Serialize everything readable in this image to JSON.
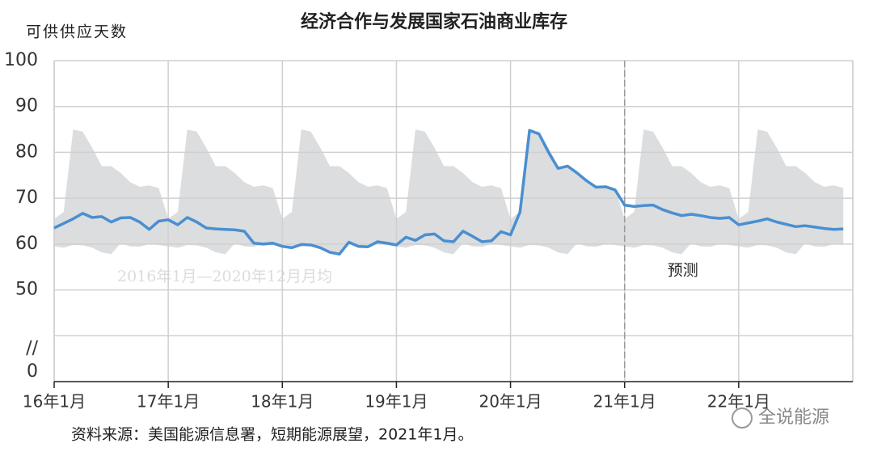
{
  "chart_data": {
    "type": "line",
    "title": "经济合作与发展国家石油商业库存",
    "y_label": "可供供应天数",
    "source": "资料来源：美国能源信息署，短期能源展望，2021年1月。",
    "watermark": "全说能源",
    "categories": [
      "16年1月",
      null,
      null,
      null,
      null,
      null,
      null,
      null,
      null,
      null,
      null,
      null,
      "17年1月",
      null,
      null,
      null,
      null,
      null,
      null,
      null,
      null,
      null,
      null,
      null,
      "18年1月",
      null,
      null,
      null,
      null,
      null,
      null,
      null,
      null,
      null,
      null,
      null,
      "19年1月",
      null,
      null,
      null,
      null,
      null,
      null,
      null,
      null,
      null,
      null,
      null,
      "20年1月",
      null,
      null,
      null,
      null,
      null,
      null,
      null,
      null,
      null,
      null,
      null,
      "21年1月",
      null,
      null,
      null,
      null,
      null,
      null,
      null,
      null,
      null,
      null,
      null,
      "22年1月",
      null,
      null,
      null,
      null,
      null,
      null,
      null,
      null,
      null,
      null,
      null
    ],
    "series": [
      {
        "color": "#4a8fd0",
        "values": [
          63.5,
          64.5,
          65.5,
          66.7,
          65.8,
          66,
          64.8,
          65.7,
          65.8,
          64.8,
          63.2,
          65,
          65.3,
          64.2,
          65.8,
          64.8,
          63.5,
          63.3,
          63.2,
          63.1,
          62.8,
          60.2,
          60,
          60.2,
          59.5,
          59.2,
          59.9,
          59.8,
          59.2,
          58.2,
          57.8,
          60.4,
          59.5,
          59.4,
          60.5,
          60.2,
          59.8,
          61.5,
          60.8,
          62,
          62.2,
          60.7,
          60.5,
          62.8,
          61.7,
          60.5,
          60.7,
          62.7,
          62,
          67,
          84.8,
          84,
          80,
          76.5,
          77,
          75.5,
          73.8,
          72.4,
          72.5,
          71.8,
          68.5,
          68.2,
          68.4,
          68.5,
          67.5,
          66.8,
          66.2,
          66.5,
          66.2,
          65.8,
          65.6,
          65.8,
          64.2,
          64.6,
          65,
          65.5,
          64.8,
          64.3,
          63.8,
          64,
          63.7,
          63.4,
          63.2,
          63.3
        ]
      }
    ],
    "band": {
      "label": "2016年1月—2020年12月月均",
      "color": "#dcdddf",
      "high": [
        65.5,
        67,
        85,
        84.5,
        81,
        77,
        77,
        75.5,
        73.5,
        72.5,
        72.8,
        72.2,
        65.5,
        67,
        85,
        84.5,
        81,
        77,
        77,
        75.5,
        73.5,
        72.5,
        72.8,
        72.2,
        65.5,
        67,
        85,
        84.5,
        81,
        77,
        77,
        75.5,
        73.5,
        72.5,
        72.8,
        72.2,
        65.5,
        67,
        85,
        84.5,
        81,
        77,
        77,
        75.5,
        73.5,
        72.5,
        72.8,
        72.2,
        65.5,
        67,
        85,
        84.5,
        81,
        77,
        77,
        75.5,
        73.5,
        72.5,
        72.8,
        72.2,
        65.5,
        67,
        85,
        84.5,
        81,
        77,
        77,
        75.5,
        73.5,
        72.5,
        72.8,
        72.2,
        65.5,
        67,
        85,
        84.5,
        81,
        77,
        77,
        75.5,
        73.5,
        72.5,
        72.8,
        72.2
      ],
      "low": [
        59.5,
        59.2,
        59.8,
        59.7,
        59.2,
        58.2,
        57.8,
        60.2,
        59.5,
        59.4,
        60,
        59.8,
        59.5,
        59.2,
        59.8,
        59.7,
        59.2,
        58.2,
        57.8,
        60.2,
        59.5,
        59.4,
        60,
        59.8,
        59.5,
        59.2,
        59.8,
        59.7,
        59.2,
        58.2,
        57.8,
        60.2,
        59.5,
        59.4,
        60,
        59.8,
        59.5,
        59.2,
        59.8,
        59.7,
        59.2,
        58.2,
        57.8,
        60.2,
        59.5,
        59.4,
        60,
        59.8,
        59.5,
        59.2,
        59.8,
        59.7,
        59.2,
        58.2,
        57.8,
        60.2,
        59.5,
        59.4,
        60,
        59.8,
        59.5,
        59.2,
        59.8,
        59.7,
        59.2,
        58.2,
        57.8,
        60.2,
        59.5,
        59.4,
        60,
        59.8,
        59.5,
        59.2,
        59.8,
        59.7,
        59.2,
        58.2,
        57.8,
        60.2,
        59.5,
        59.4,
        60,
        59.8
      ]
    },
    "forecast": {
      "label": "预测",
      "index": 60
    },
    "ylim": [
      30,
      100
    ],
    "yticks": [
      {
        "value": 0,
        "label": "0"
      },
      {
        "value": 40,
        "label": "//"
      },
      50,
      60,
      70,
      80,
      90,
      100
    ],
    "axis_break": true,
    "grid": true
  }
}
